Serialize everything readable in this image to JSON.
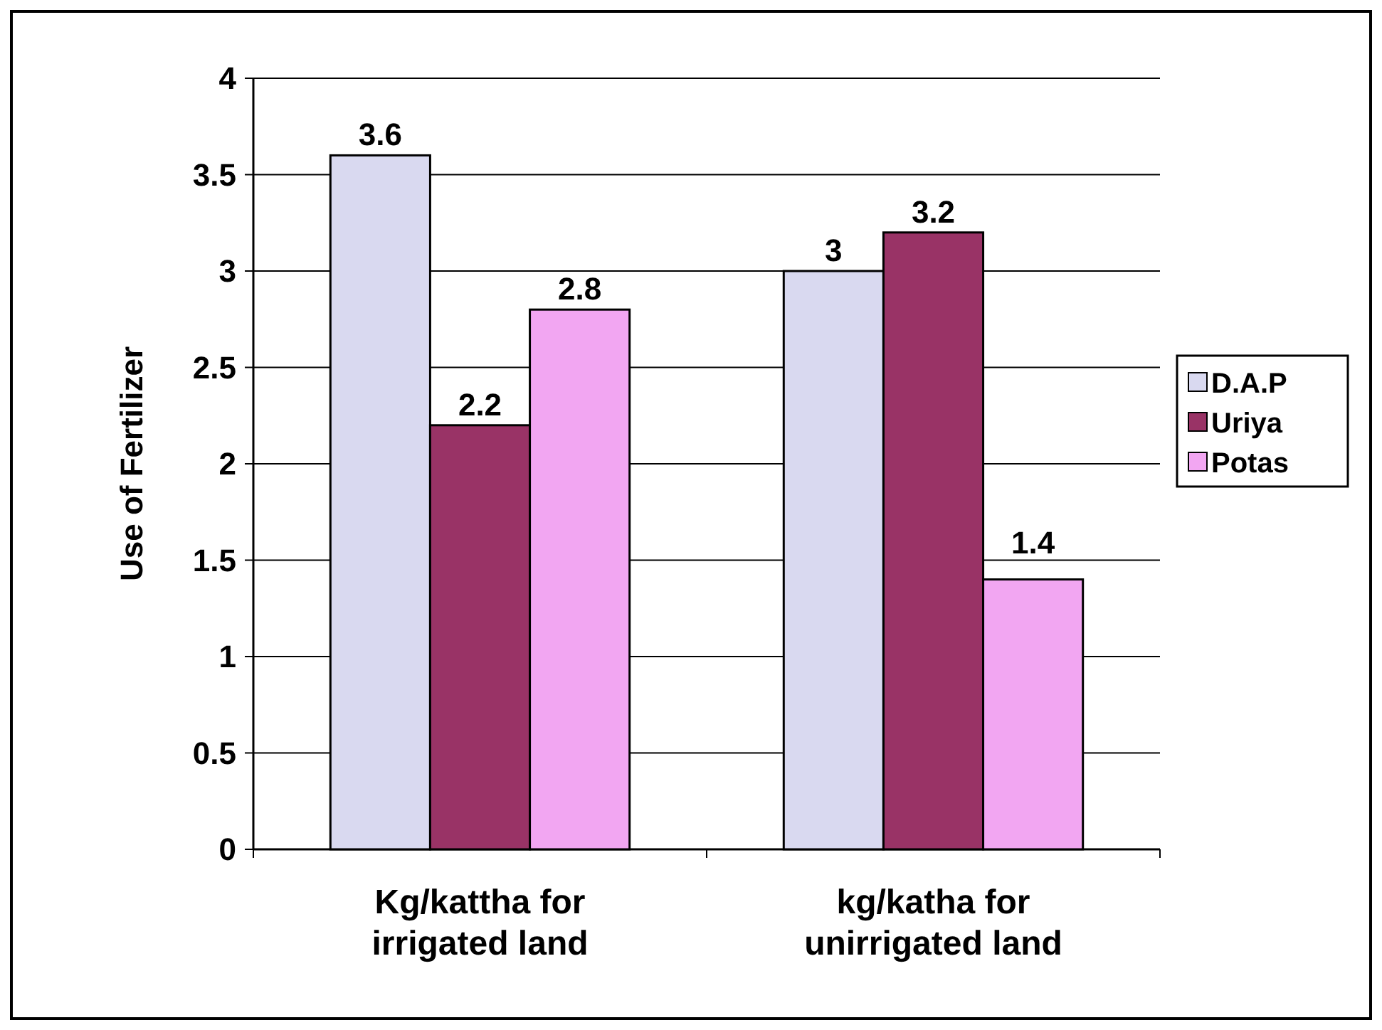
{
  "chart_data": {
    "type": "bar",
    "ylabel": "Use of Fertilizer",
    "categories": [
      "Kg/kattha for irrigated land",
      "kg/katha for unirrigated land"
    ],
    "series": [
      {
        "name": "D.A.P",
        "color": "#d9d9f0",
        "values": [
          3.6,
          3
        ]
      },
      {
        "name": "Uriya",
        "color": "#993366",
        "values": [
          2.2,
          3.2
        ]
      },
      {
        "name": "Potas",
        "color": "#f2a6f2",
        "values": [
          2.8,
          1.4
        ]
      }
    ],
    "ylim": [
      0,
      4
    ],
    "yticks": [
      0,
      0.5,
      1,
      1.5,
      2,
      2.5,
      3,
      3.5,
      4
    ],
    "grid": "y",
    "legend": "right",
    "data_labels": true
  }
}
